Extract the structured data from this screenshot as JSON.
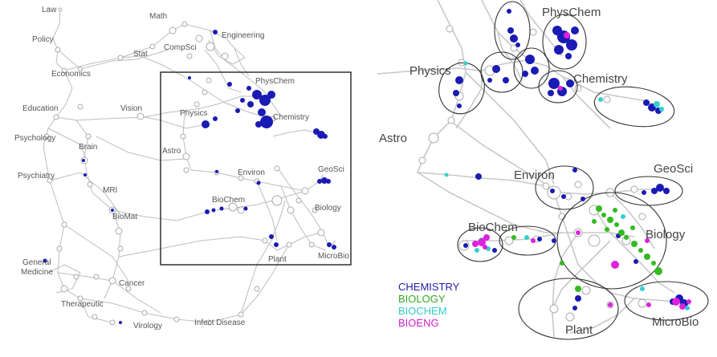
{
  "left_map": {
    "labels": [
      "Law",
      "Policy",
      "Math",
      "Engineering",
      "Stat",
      "CompSci",
      "Economics",
      "PhysChem",
      "Education",
      "Vision",
      "Physics",
      "Chemistry",
      "Psychology",
      "Brain",
      "Astro",
      "Psychiatry",
      "Environ",
      "GeoSci",
      "MRI",
      "BioChem",
      "Biology",
      "BioMat",
      "Plant",
      "MicroBio",
      "General Medicine",
      "Cancer",
      "Therapeutic",
      "Virology",
      "Infect Disease"
    ]
  },
  "right_map": {
    "labels": [
      "PhysChem",
      "Physics",
      "Chemistry",
      "Astro",
      "Environ",
      "GeoSci",
      "BioChem",
      "Biology",
      "Plant",
      "MicroBio"
    ]
  },
  "legend": {
    "items": [
      {
        "label": "CHEMISTRY",
        "color": "#1f1fa8"
      },
      {
        "label": "BIOLOGY",
        "color": "#33aa22"
      },
      {
        "label": "BIOCHEM",
        "color": "#33cccc"
      },
      {
        "label": "BIOENG",
        "color": "#cc22cc"
      }
    ]
  },
  "colors": {
    "chemistry": "#1a1ab5",
    "biology": "#33bb22",
    "biochem": "#33d0d0",
    "bioeng": "#dd22dd",
    "node_white": "#ffffff",
    "edge": "#bdbdbd",
    "frame": "#222222"
  }
}
